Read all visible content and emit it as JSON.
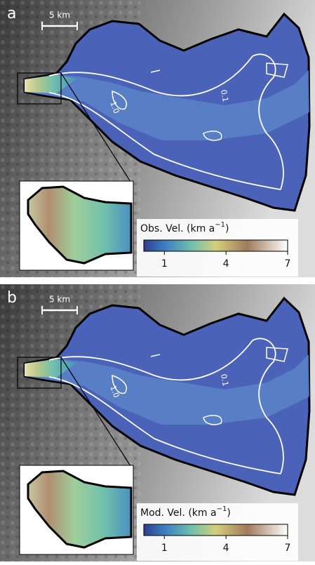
{
  "panels": [
    {
      "label": "a",
      "scale_bar": "5 km",
      "contour_labels": [
        "0.1",
        "1.0"
      ],
      "colorbar": {
        "label": "Obs. Vel. (km a",
        "label_exponent": "−1",
        "label_end": ")",
        "lim": [
          0,
          7
        ],
        "ticks": [
          1,
          4,
          7
        ]
      }
    },
    {
      "label": "b",
      "scale_bar": "5 km",
      "contour_labels": [
        "0.1",
        "1.0"
      ],
      "colorbar": {
        "label": "Mod. Vel. (km a",
        "label_exponent": "−1",
        "label_end": ")",
        "lim": [
          0,
          7
        ],
        "ticks": [
          1,
          4,
          7
        ]
      }
    }
  ]
}
